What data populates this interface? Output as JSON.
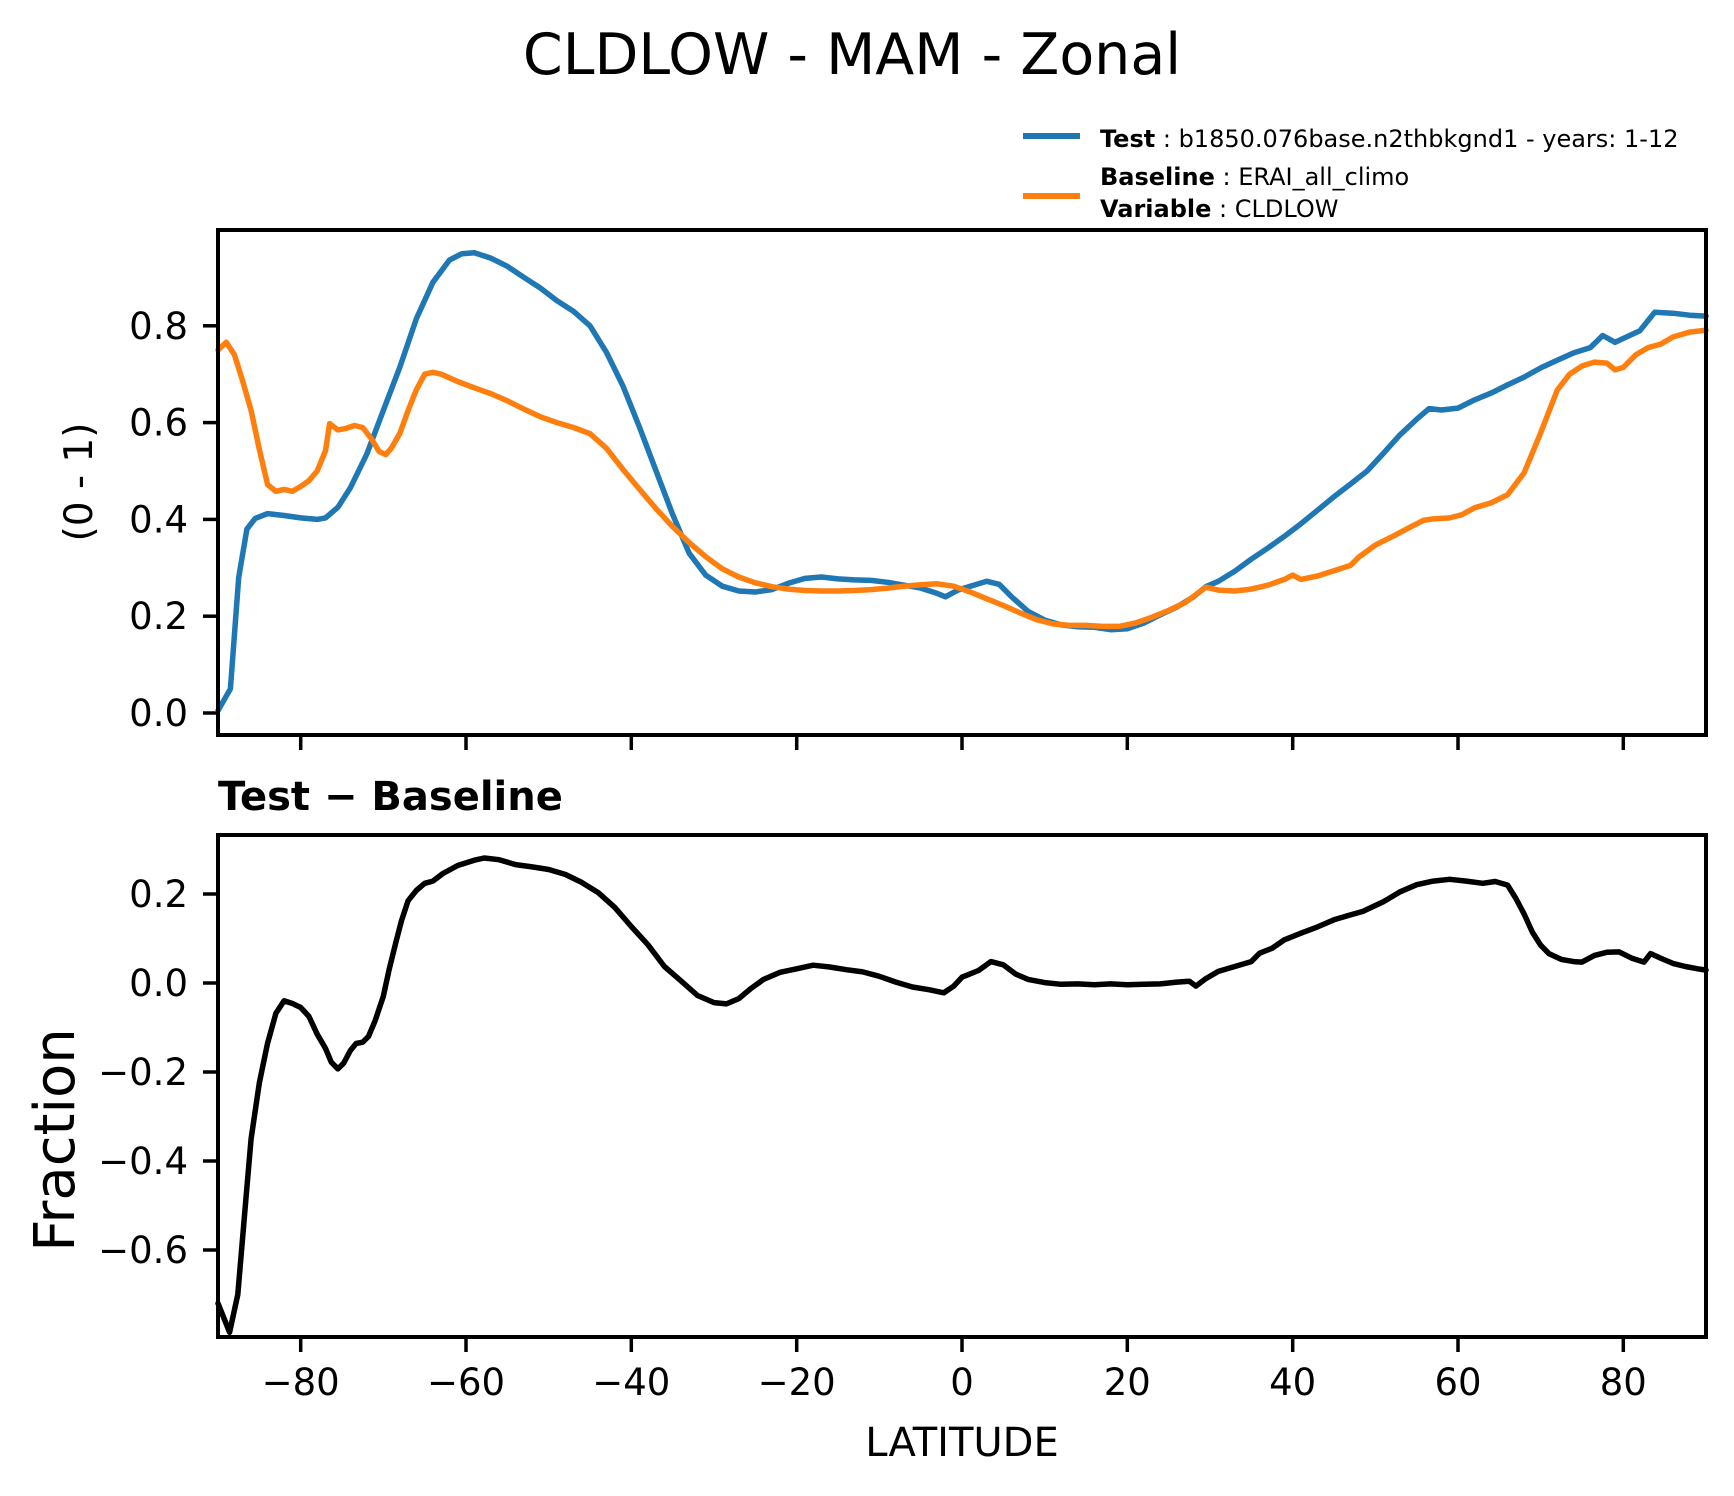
{
  "figure": {
    "title": "CLDLOW - MAM - Zonal",
    "colors": {
      "test": "#1f77b4",
      "baseline": "#ff7f0e",
      "diff": "#000000"
    },
    "legend": [
      {
        "color": "#1f77b4",
        "lines": [
          {
            "bold": "Test",
            "rest": " : b1850.076base.n2thbkgnd1 - years: 1-12"
          }
        ]
      },
      {
        "color": "#ff7f0e",
        "lines": [
          {
            "bold": "Baseline",
            "rest": " : ERAI_all_climo"
          },
          {
            "bold": "Variable",
            "rest": " : CLDLOW"
          }
        ]
      }
    ]
  },
  "chart_data": [
    {
      "type": "line",
      "title": "",
      "xlabel": "",
      "ylabel": "(0 - 1)",
      "grid": false,
      "legend_position": "upper right outside",
      "xlim": [
        -90,
        90
      ],
      "ylim": [
        -0.0455,
        0.998
      ],
      "xticks": [
        -80,
        -60,
        -40,
        -20,
        0,
        20,
        40,
        60,
        80
      ],
      "xtick_labels": [
        "−80",
        "−60",
        "−40",
        "−20",
        "0",
        "20",
        "40",
        "60",
        "80"
      ],
      "yticks": [
        0.0,
        0.2,
        0.4,
        0.6,
        0.8
      ],
      "ytick_labels": [
        "0.0",
        "0.2",
        "0.4",
        "0.6",
        "0.8"
      ],
      "series": [
        {
          "name": "Test",
          "color": "#1f77b4",
          "x": [
            -90,
            -88.5,
            -87.5,
            -86.5,
            -85.5,
            -84,
            -82,
            -80,
            -78,
            -77,
            -75.5,
            -74,
            -72,
            -70,
            -68,
            -66,
            -64,
            -62,
            -60.5,
            -59,
            -57,
            -55,
            -53,
            -51,
            -49,
            -47,
            -45,
            -43,
            -41,
            -39,
            -37,
            -35,
            -33,
            -31,
            -29,
            -27,
            -25,
            -23,
            -21,
            -19,
            -17,
            -15,
            -13,
            -11,
            -9,
            -7,
            -5,
            -3,
            -2,
            -0.5,
            1,
            3,
            4.5,
            6,
            8,
            10,
            12,
            14,
            16,
            18,
            20,
            22,
            24,
            26,
            28,
            29.5,
            31,
            33,
            35,
            37,
            39,
            41,
            43,
            45,
            47,
            49,
            51,
            53,
            55,
            56.5,
            58,
            60,
            62,
            64,
            66,
            68,
            70,
            72,
            74,
            76,
            77.5,
            79,
            80.5,
            82,
            83.8,
            86,
            88,
            90
          ],
          "y": [
            0.005,
            0.05,
            0.28,
            0.38,
            0.402,
            0.412,
            0.408,
            0.403,
            0.4,
            0.403,
            0.425,
            0.465,
            0.535,
            0.625,
            0.715,
            0.815,
            0.89,
            0.936,
            0.949,
            0.951,
            0.94,
            0.923,
            0.9,
            0.878,
            0.852,
            0.83,
            0.8,
            0.745,
            0.675,
            0.59,
            0.5,
            0.41,
            0.33,
            0.285,
            0.262,
            0.252,
            0.25,
            0.255,
            0.268,
            0.278,
            0.281,
            0.277,
            0.275,
            0.274,
            0.27,
            0.264,
            0.258,
            0.247,
            0.24,
            0.254,
            0.262,
            0.272,
            0.266,
            0.24,
            0.21,
            0.192,
            0.182,
            0.178,
            0.177,
            0.172,
            0.174,
            0.186,
            0.203,
            0.219,
            0.24,
            0.261,
            0.272,
            0.293,
            0.318,
            0.341,
            0.365,
            0.391,
            0.419,
            0.447,
            0.473,
            0.5,
            0.537,
            0.575,
            0.607,
            0.629,
            0.626,
            0.63,
            0.647,
            0.661,
            0.678,
            0.694,
            0.713,
            0.729,
            0.744,
            0.755,
            0.78,
            0.766,
            0.778,
            0.79,
            0.828,
            0.826,
            0.822,
            0.82
          ]
        },
        {
          "name": "Baseline",
          "color": "#ff7f0e",
          "x": [
            -90,
            -89,
            -88,
            -87,
            -86,
            -85,
            -84,
            -83,
            -82,
            -81,
            -80,
            -79,
            -78,
            -77,
            -76.5,
            -75.5,
            -74.5,
            -73.5,
            -72.5,
            -71.5,
            -70.5,
            -69.7,
            -69,
            -68,
            -67,
            -66,
            -65,
            -64,
            -63,
            -61,
            -59,
            -57,
            -55,
            -53,
            -51,
            -49,
            -47,
            -45,
            -43,
            -41,
            -39,
            -37,
            -35,
            -33,
            -31,
            -29,
            -27,
            -25,
            -23,
            -21,
            -19,
            -17,
            -15,
            -13,
            -11,
            -9,
            -7,
            -5,
            -3,
            -1,
            1,
            3,
            5,
            7,
            9,
            11,
            13,
            15,
            17,
            19,
            21,
            23,
            25,
            27,
            28.5,
            29.5,
            31,
            33,
            35,
            37,
            39,
            40,
            41,
            43,
            45,
            47,
            48,
            50,
            52,
            54,
            55.8,
            57,
            59,
            60.5,
            62,
            64,
            66,
            68,
            70,
            72,
            73.5,
            75,
            76.5,
            78,
            79,
            80,
            81.5,
            83,
            84.5,
            86,
            88,
            90
          ],
          "y": [
            0.75,
            0.766,
            0.74,
            0.685,
            0.625,
            0.545,
            0.472,
            0.458,
            0.462,
            0.458,
            0.468,
            0.48,
            0.5,
            0.542,
            0.598,
            0.585,
            0.588,
            0.594,
            0.59,
            0.568,
            0.54,
            0.534,
            0.548,
            0.578,
            0.625,
            0.668,
            0.7,
            0.704,
            0.7,
            0.685,
            0.672,
            0.66,
            0.645,
            0.628,
            0.612,
            0.6,
            0.59,
            0.577,
            0.547,
            0.503,
            0.462,
            0.422,
            0.385,
            0.352,
            0.323,
            0.298,
            0.281,
            0.269,
            0.261,
            0.256,
            0.253,
            0.252,
            0.252,
            0.253,
            0.255,
            0.258,
            0.262,
            0.265,
            0.267,
            0.262,
            0.25,
            0.236,
            0.222,
            0.207,
            0.193,
            0.184,
            0.181,
            0.181,
            0.179,
            0.179,
            0.186,
            0.198,
            0.212,
            0.228,
            0.247,
            0.26,
            0.254,
            0.252,
            0.256,
            0.264,
            0.276,
            0.285,
            0.276,
            0.283,
            0.294,
            0.305,
            0.322,
            0.347,
            0.364,
            0.382,
            0.398,
            0.401,
            0.403,
            0.41,
            0.424,
            0.434,
            0.451,
            0.496,
            0.579,
            0.667,
            0.7,
            0.717,
            0.725,
            0.723,
            0.709,
            0.714,
            0.74,
            0.755,
            0.762,
            0.777,
            0.787,
            0.791
          ]
        }
      ]
    },
    {
      "type": "line",
      "title": "Test − Baseline",
      "xlabel": "LATITUDE",
      "ylabel": "Fraction",
      "grid": false,
      "xlim": [
        -90,
        90
      ],
      "ylim": [
        -0.7955,
        0.3326
      ],
      "xticks": [
        -80,
        -60,
        -40,
        -20,
        0,
        20,
        40,
        60,
        80
      ],
      "xtick_labels": [
        "−80",
        "−60",
        "−40",
        "−20",
        "0",
        "20",
        "40",
        "60",
        "80"
      ],
      "yticks": [
        0.2,
        0.0,
        -0.2,
        -0.4,
        -0.6
      ],
      "ytick_labels": [
        "0.2",
        "0.0",
        "−0.2",
        "−0.4",
        "−0.6"
      ],
      "series": [
        {
          "name": "Test - Baseline",
          "color": "#000000",
          "x": [
            -90,
            -88.6,
            -87.6,
            -86.6,
            -86,
            -85,
            -84,
            -83,
            -82,
            -81,
            -80,
            -79,
            -78,
            -77,
            -76.3,
            -75.5,
            -74.8,
            -74,
            -73.3,
            -72.5,
            -71.8,
            -71,
            -70,
            -69.3,
            -68.5,
            -67.8,
            -67,
            -66,
            -65,
            -64,
            -62.8,
            -61,
            -59,
            -57.8,
            -56,
            -54,
            -52,
            -50,
            -48,
            -46,
            -44,
            -42,
            -40,
            -38,
            -36,
            -34,
            -32,
            -30,
            -28.5,
            -27,
            -25.5,
            -24,
            -22,
            -20,
            -18,
            -16,
            -14,
            -12,
            -10,
            -8,
            -6,
            -4,
            -2.2,
            -1,
            0,
            2,
            3.5,
            5,
            6.5,
            8,
            10,
            12,
            14,
            16,
            18,
            20,
            22,
            24,
            26,
            27.5,
            28.3,
            29.5,
            31,
            33,
            35,
            36,
            37.5,
            39,
            41,
            43,
            45,
            47,
            48.5,
            51,
            53,
            55,
            57,
            59,
            61,
            63,
            64.5,
            66,
            67,
            68,
            69,
            70,
            71,
            72.5,
            74,
            75,
            76.5,
            78,
            79.5,
            81,
            82.5,
            83.3,
            84.5,
            86,
            87.5,
            89,
            90
          ],
          "y": [
            -0.72,
            -0.785,
            -0.7,
            -0.48,
            -0.35,
            -0.225,
            -0.135,
            -0.068,
            -0.04,
            -0.046,
            -0.055,
            -0.075,
            -0.115,
            -0.147,
            -0.178,
            -0.193,
            -0.18,
            -0.152,
            -0.136,
            -0.133,
            -0.12,
            -0.085,
            -0.03,
            0.03,
            0.09,
            0.14,
            0.185,
            0.208,
            0.224,
            0.229,
            0.246,
            0.264,
            0.276,
            0.281,
            0.277,
            0.266,
            0.261,
            0.255,
            0.244,
            0.226,
            0.203,
            0.17,
            0.127,
            0.086,
            0.037,
            0.005,
            -0.028,
            -0.044,
            -0.047,
            -0.035,
            -0.012,
            0.008,
            0.024,
            0.032,
            0.04,
            0.036,
            0.03,
            0.025,
            0.015,
            0.002,
            -0.009,
            -0.015,
            -0.022,
            -0.007,
            0.013,
            0.028,
            0.048,
            0.041,
            0.02,
            0.008,
            0.001,
            -0.003,
            -0.002,
            -0.004,
            -0.002,
            -0.004,
            -0.003,
            -0.002,
            0.002,
            0.004,
            -0.007,
            0.01,
            0.026,
            0.037,
            0.048,
            0.067,
            0.078,
            0.097,
            0.112,
            0.126,
            0.142,
            0.153,
            0.161,
            0.183,
            0.205,
            0.221,
            0.229,
            0.233,
            0.229,
            0.224,
            0.228,
            0.22,
            0.19,
            0.155,
            0.114,
            0.085,
            0.066,
            0.053,
            0.048,
            0.047,
            0.062,
            0.069,
            0.07,
            0.056,
            0.047,
            0.066,
            0.056,
            0.044,
            0.037,
            0.032,
            0.029
          ]
        }
      ]
    }
  ]
}
